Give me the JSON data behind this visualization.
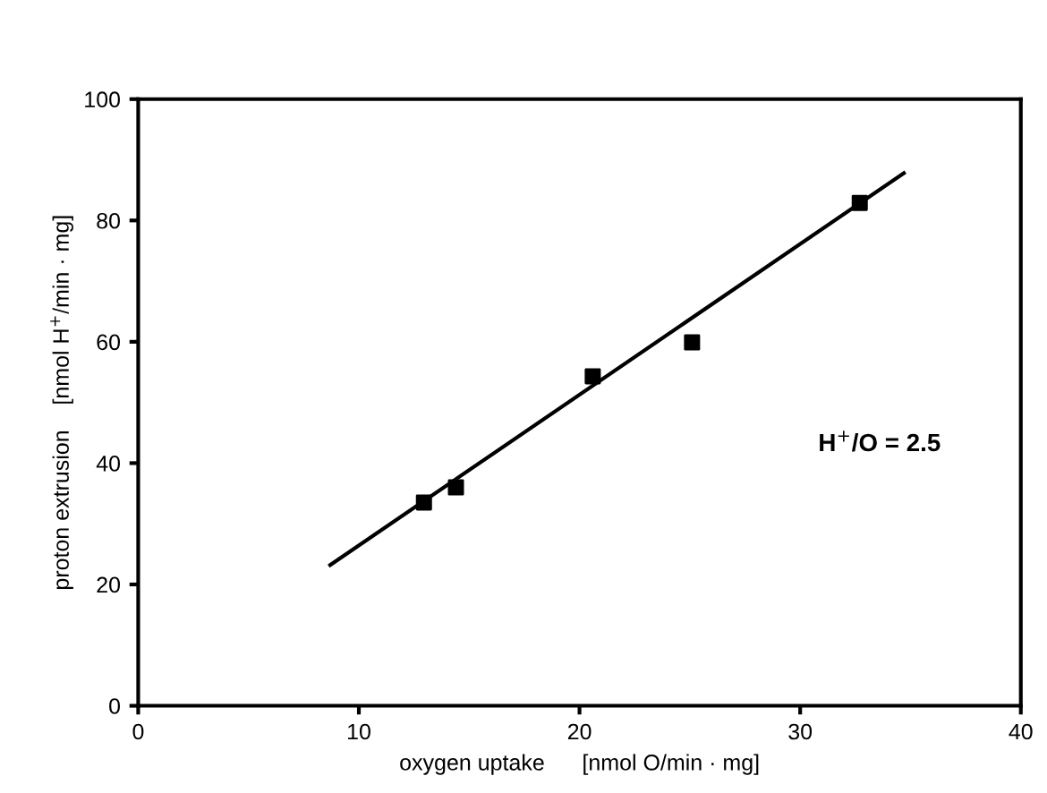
{
  "chart_data": {
    "type": "scatter",
    "xlabel": "oxygen uptake      [nmol O/min · mg]",
    "ylabel": "proton extrusion    [nmol H$^{+}$/min · mg]",
    "xlim": [
      0,
      40
    ],
    "ylim": [
      0,
      100
    ],
    "xticks": [
      0,
      10,
      20,
      30,
      40
    ],
    "yticks": [
      0,
      20,
      40,
      60,
      80,
      100
    ],
    "grid": false,
    "legend": false,
    "annotations": [
      "H$^{+}$/O = 2.5"
    ],
    "series": [
      {
        "marker": "square",
        "color": "#000000",
        "x": [
          12.95,
          14.4,
          20.6,
          25.1,
          32.7
        ],
        "values": [
          33.5,
          36.0,
          54.3,
          59.9,
          82.9
        ]
      },
      {
        "type": "line",
        "marker": "none",
        "color": "#000000",
        "x": [
          8.7,
          34.7
        ],
        "values": [
          23.2,
          87.8
        ]
      }
    ]
  }
}
